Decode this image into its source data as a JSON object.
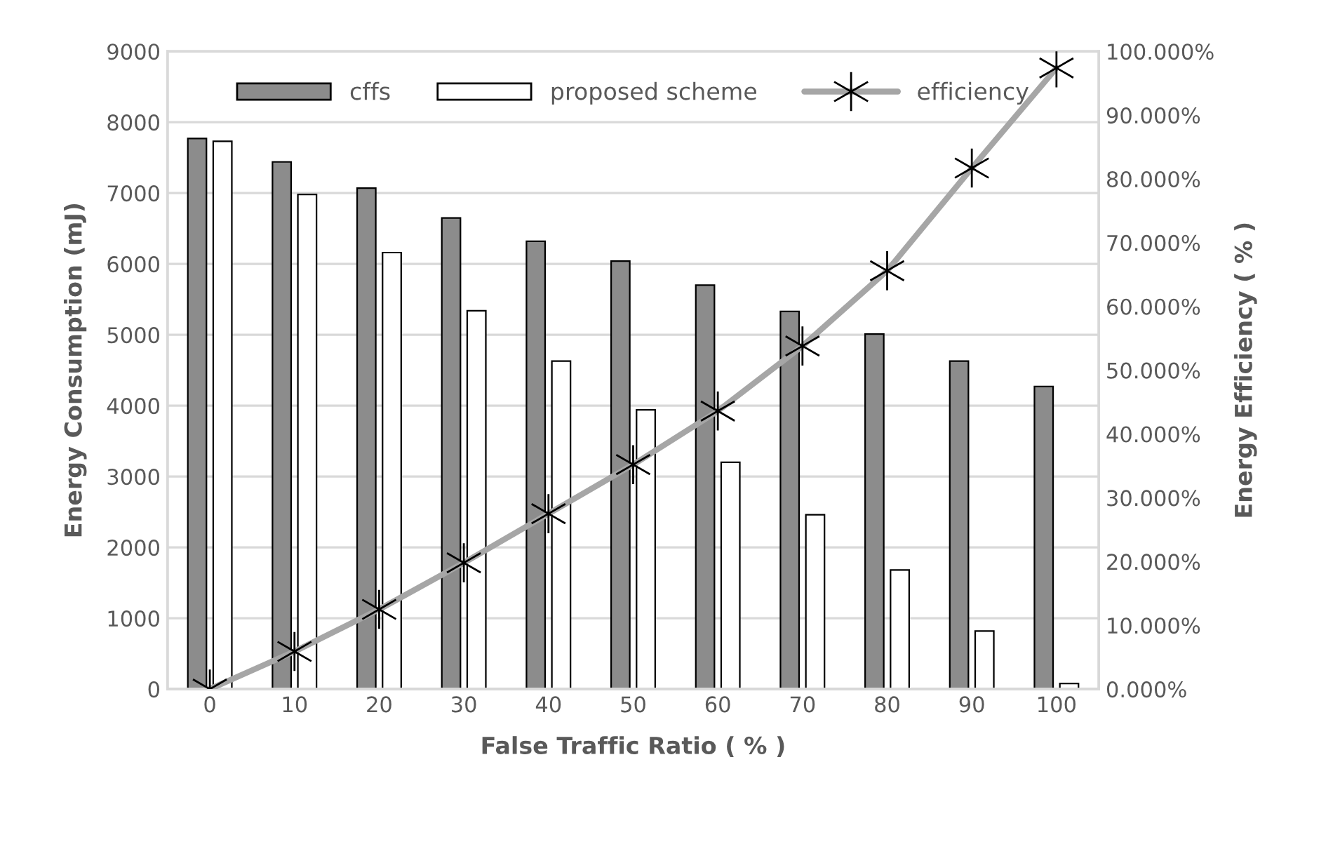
{
  "chart_data": {
    "type": "bar",
    "xlabel": "False Traffic Ratio ( % )",
    "ylabel": "Energy Consumption (mJ)",
    "y2label": "Energy Efficiency ( % )",
    "categories": [
      "0",
      "10",
      "20",
      "30",
      "40",
      "50",
      "60",
      "70",
      "80",
      "90",
      "100"
    ],
    "series": [
      {
        "name": "cffs",
        "color": "#8c8c8c",
        "values": [
          7770,
          7440,
          7070,
          6650,
          6320,
          6040,
          5700,
          5330,
          5010,
          4630,
          4270
        ]
      },
      {
        "name": "proposed scheme",
        "color": "#ffffff",
        "values": [
          7730,
          6980,
          6160,
          5340,
          4630,
          3940,
          3200,
          2460,
          1680,
          820,
          80
        ]
      },
      {
        "name": "efficiency",
        "type": "line",
        "axis": "y2",
        "color": "#a6a6a6",
        "marker": "cross",
        "values": [
          0.0,
          5.9,
          12.5,
          19.8,
          27.5,
          35.2,
          43.6,
          53.8,
          65.6,
          81.7,
          97.4
        ]
      }
    ],
    "ylim": [
      0,
      9000
    ],
    "yticks": [
      0,
      1000,
      2000,
      3000,
      4000,
      5000,
      6000,
      7000,
      8000,
      9000
    ],
    "y2lim": [
      0,
      100
    ],
    "y2ticks": [
      {
        "value": 0,
        "label": "0.000%"
      },
      {
        "value": 10,
        "label": "10.000%"
      },
      {
        "value": 20,
        "label": "20.000%"
      },
      {
        "value": 30,
        "label": "30.000%"
      },
      {
        "value": 40,
        "label": "40.000%"
      },
      {
        "value": 50,
        "label": "50.000%"
      },
      {
        "value": 60,
        "label": "60.000%"
      },
      {
        "value": 70,
        "label": "70.000%"
      },
      {
        "value": 80,
        "label": "80.000%"
      },
      {
        "value": 90,
        "label": "90.000%"
      },
      {
        "value": 100,
        "label": "100.000%"
      }
    ],
    "grid": "y",
    "legend": "top"
  }
}
